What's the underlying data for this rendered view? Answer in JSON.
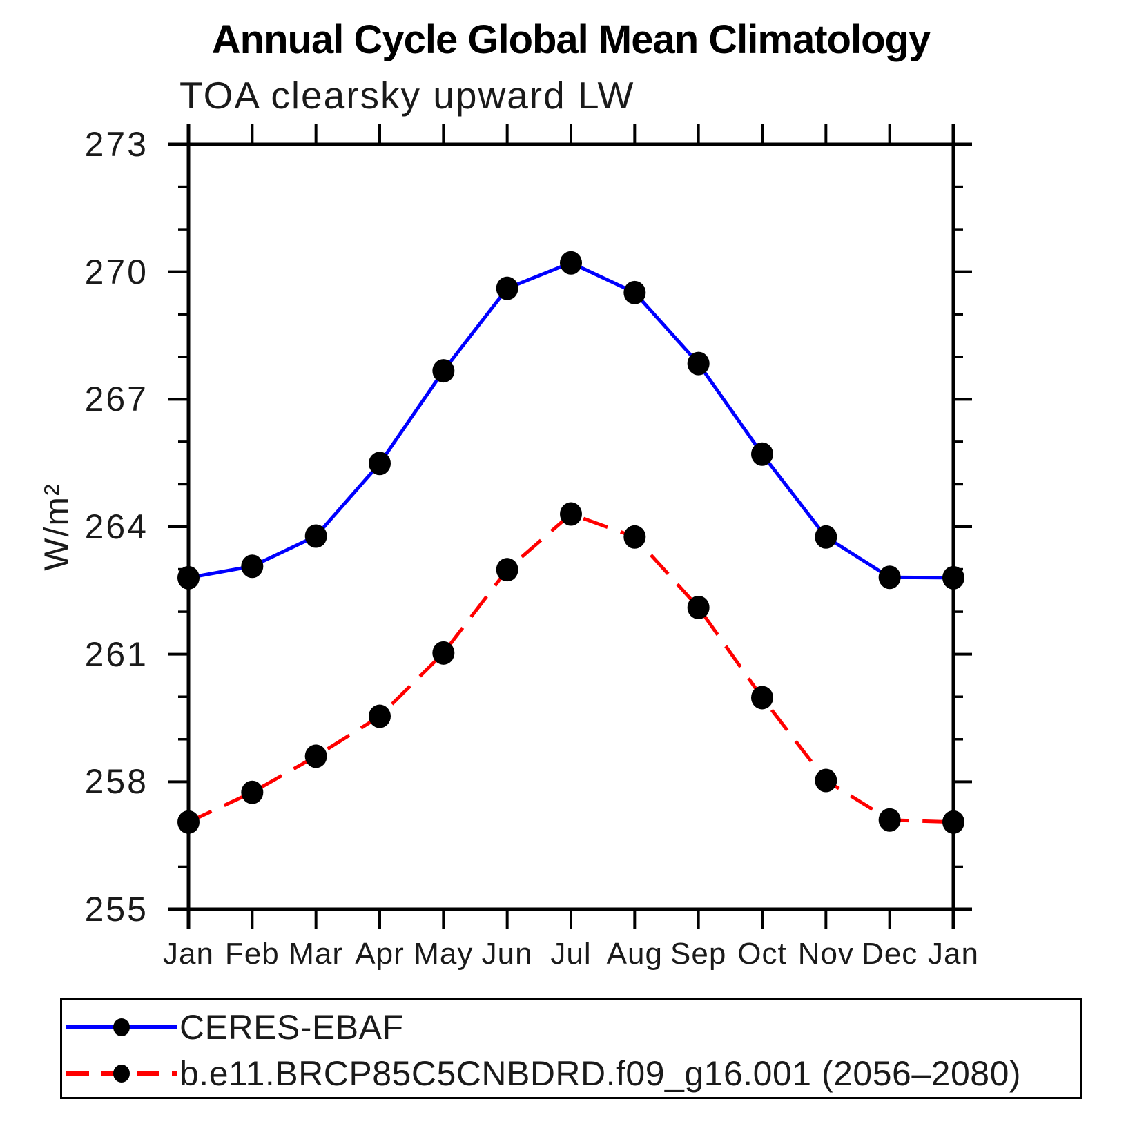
{
  "chart_data": {
    "type": "line",
    "title": "Annual Cycle Global Mean Climatology",
    "subtitle": "TOA clearsky upward LW",
    "ylabel": "W/m²",
    "xlabel": "",
    "categories": [
      "Jan",
      "Feb",
      "Mar",
      "Apr",
      "May",
      "Jun",
      "Jul",
      "Aug",
      "Sep",
      "Oct",
      "Nov",
      "Dec",
      "Jan"
    ],
    "ylim": [
      255,
      273
    ],
    "yticks_major": [
      255,
      258,
      261,
      264,
      267,
      270,
      273
    ],
    "ytick_minor_step": 1,
    "grid": false,
    "legend_position": "bottom",
    "frame_color": "#000000",
    "marker_color": "#000000",
    "series": [
      {
        "name": "CERES-EBAF",
        "color": "#0000ff",
        "line_style": "solid",
        "marker": "circle",
        "values": [
          262.8,
          263.07,
          263.78,
          265.49,
          267.67,
          269.61,
          270.21,
          269.51,
          267.84,
          265.71,
          263.76,
          262.81,
          262.8
        ]
      },
      {
        "name": "b.e11.BRCP85C5CNBDRD.f09_g16.001 (2056–2080)",
        "color": "#ff0000",
        "line_style": "dashed",
        "marker": "circle",
        "values": [
          257.05,
          257.75,
          258.6,
          259.54,
          261.03,
          262.99,
          264.3,
          263.76,
          262.1,
          259.98,
          258.03,
          257.1,
          257.05
        ]
      }
    ]
  }
}
